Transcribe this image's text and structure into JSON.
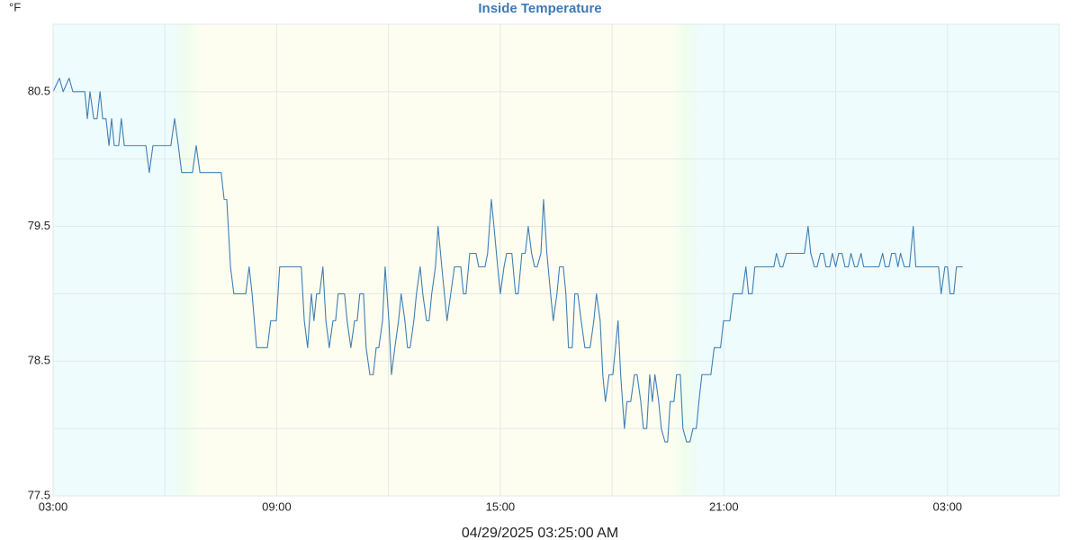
{
  "chart_data": {
    "type": "line",
    "title": "Inside Temperature",
    "y_unit": "°F",
    "xlabel": "04/29/2025 03:25:00 AM",
    "xlim": [
      0,
      27
    ],
    "ylim": [
      77.5,
      81
    ],
    "xticks": [
      {
        "value": 0,
        "label": "03:00"
      },
      {
        "value": 6,
        "label": "09:00"
      },
      {
        "value": 12,
        "label": "15:00"
      },
      {
        "value": 18,
        "label": "21:00"
      },
      {
        "value": 24,
        "label": "03:00"
      }
    ],
    "minor_xticks": [
      3,
      9,
      15,
      21,
      27
    ],
    "yticks": [
      77.5,
      78.5,
      79.5,
      80.5
    ],
    "minor_yticks": [
      78,
      79,
      80
    ],
    "grid": true,
    "series": [
      {
        "name": "Inside Temperature",
        "color": "#3f7fb5",
        "x": [
          0,
          0.17,
          0.27,
          0.43,
          0.53,
          0.85,
          0.92,
          0.99,
          1.09,
          1.18,
          1.26,
          1.33,
          1.42,
          1.5,
          1.57,
          1.64,
          1.76,
          1.83,
          1.91,
          2.49,
          2.58,
          2.68,
          3.16,
          3.26,
          3.36,
          3.45,
          3.74,
          3.84,
          3.94,
          4.51,
          4.59,
          4.66,
          4.76,
          4.85,
          5.17,
          5.26,
          5.34,
          5.46,
          5.75,
          5.84,
          5.99,
          6.08,
          6.66,
          6.74,
          6.83,
          6.93,
          7,
          7.07,
          7.15,
          7.24,
          7.32,
          7.41,
          7.51,
          7.58,
          7.65,
          7.82,
          7.89,
          7.99,
          8.09,
          8.16,
          8.23,
          8.33,
          8.4,
          8.5,
          8.59,
          8.67,
          8.74,
          8.84,
          8.91,
          9.01,
          9.08,
          9.17,
          9.27,
          9.34,
          9.44,
          9.51,
          9.58,
          9.68,
          9.75,
          9.85,
          9.92,
          10.02,
          10.09,
          10.16,
          10.26,
          10.33,
          10.43,
          10.5,
          10.57,
          10.67,
          10.77,
          10.94,
          11.01,
          11.08,
          11.18,
          11.35,
          11.42,
          11.59,
          11.66,
          11.76,
          11.83,
          11.93,
          12,
          12.1,
          12.17,
          12.31,
          12.41,
          12.48,
          12.58,
          12.67,
          12.75,
          12.84,
          12.92,
          12.99,
          13.09,
          13.16,
          13.25,
          13.35,
          13.42,
          13.52,
          13.59,
          13.69,
          13.76,
          13.83,
          13.93,
          14,
          14.08,
          14.17,
          14.27,
          14.41,
          14.51,
          14.58,
          14.68,
          14.75,
          14.82,
          14.92,
          15.02,
          15.09,
          15.16,
          15.23,
          15.33,
          15.4,
          15.5,
          15.6,
          15.67,
          15.77,
          15.84,
          15.93,
          16.01,
          16.08,
          16.15,
          16.25,
          16.32,
          16.42,
          16.49,
          16.56,
          16.66,
          16.73,
          16.83,
          16.9,
          17,
          17.09,
          17.17,
          17.26,
          17.33,
          17.41,
          17.65,
          17.74,
          17.91,
          17.99,
          18.16,
          18.25,
          18.49,
          18.59,
          18.66,
          18.76,
          18.83,
          19.34,
          19.41,
          19.51,
          19.58,
          19.68,
          20.16,
          20.26,
          20.33,
          20.43,
          20.5,
          20.59,
          20.67,
          20.74,
          20.84,
          20.91,
          21,
          21.08,
          21.17,
          21.25,
          21.34,
          21.41,
          21.51,
          21.58,
          21.68,
          21.75,
          22.16,
          22.26,
          22.33,
          22.43,
          22.5,
          22.6,
          22.67,
          22.74,
          22.84,
          22.98,
          23.08,
          23.15,
          23.76,
          23.83,
          23.93,
          24,
          24.07,
          24.17,
          24.24,
          24.41
        ],
        "values": [
          80.5,
          80.6,
          80.5,
          80.6,
          80.5,
          80.5,
          80.3,
          80.5,
          80.3,
          80.3,
          80.5,
          80.3,
          80.3,
          80.1,
          80.3,
          80.1,
          80.1,
          80.3,
          80.1,
          80.1,
          79.9,
          80.1,
          80.1,
          80.3,
          80.1,
          79.9,
          79.9,
          80.1,
          79.9,
          79.9,
          79.7,
          79.7,
          79.2,
          79,
          79,
          79.2,
          79,
          78.6,
          78.6,
          78.8,
          78.8,
          79.2,
          79.2,
          78.8,
          78.6,
          79,
          78.8,
          79,
          79,
          79.2,
          78.8,
          78.6,
          78.8,
          78.8,
          79,
          79,
          78.8,
          78.6,
          78.8,
          78.8,
          79,
          79,
          78.6,
          78.4,
          78.4,
          78.6,
          78.6,
          78.8,
          79.2,
          78.8,
          78.4,
          78.6,
          78.8,
          79,
          78.8,
          78.6,
          78.6,
          78.8,
          79,
          79.2,
          79,
          78.8,
          78.8,
          79,
          79.2,
          79.5,
          79.2,
          79,
          78.8,
          79,
          79.2,
          79.2,
          79,
          79,
          79.3,
          79.3,
          79.2,
          79.2,
          79.3,
          79.7,
          79.5,
          79.2,
          79,
          79.2,
          79.3,
          79.3,
          79,
          79,
          79.3,
          79.3,
          79.5,
          79.3,
          79.2,
          79.2,
          79.3,
          79.7,
          79.3,
          79,
          78.8,
          79,
          79.2,
          79.2,
          79,
          78.6,
          78.6,
          79,
          79,
          78.8,
          78.6,
          78.6,
          78.8,
          79,
          78.8,
          78.4,
          78.2,
          78.4,
          78.4,
          78.6,
          78.8,
          78.4,
          78,
          78.2,
          78.2,
          78.4,
          78.4,
          78.2,
          78,
          78,
          78.4,
          78.2,
          78.4,
          78.2,
          78,
          77.9,
          77.9,
          78.2,
          78.2,
          78.4,
          78.4,
          78,
          77.9,
          77.9,
          78,
          78,
          78.2,
          78.4,
          78.4,
          78.6,
          78.6,
          78.8,
          78.8,
          79,
          79,
          79.2,
          79,
          79,
          79.2,
          79.2,
          79.3,
          79.2,
          79.2,
          79.3,
          79.3,
          79.5,
          79.3,
          79.2,
          79.2,
          79.3,
          79.3,
          79.2,
          79.2,
          79.3,
          79.2,
          79.3,
          79.3,
          79.2,
          79.2,
          79.3,
          79.2,
          79.2,
          79.3,
          79.2,
          79.2,
          79.3,
          79.2,
          79.2,
          79.3,
          79.3,
          79.2,
          79.3,
          79.2,
          79.2,
          79.5,
          79.2,
          79.2,
          79,
          79.2,
          79.2,
          79,
          79,
          79.2,
          79.2
        ]
      }
    ]
  }
}
